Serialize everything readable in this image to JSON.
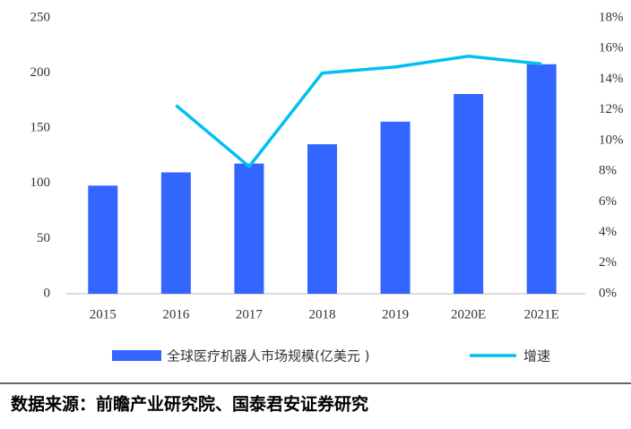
{
  "chart_data": {
    "type": "bar_line",
    "categories": [
      "2015",
      "2016",
      "2017",
      "2018",
      "2019",
      "2020E",
      "2021E"
    ],
    "series": [
      {
        "name": "全球医疗机器人市场规模(亿美元 )",
        "type": "bar",
        "color": "#3366ff",
        "values": [
          98,
          110,
          118,
          135.5,
          156,
          181,
          208
        ]
      },
      {
        "name": "增速",
        "type": "line",
        "axis": "y2",
        "color": "#00c0f0",
        "values": [
          null,
          12.3,
          8.3,
          14.4,
          14.8,
          15.5,
          15.0
        ]
      }
    ],
    "ylim": [
      0,
      250
    ],
    "yticks": [
      0,
      50,
      100,
      150,
      200,
      250
    ],
    "y2lim": [
      0,
      18
    ],
    "y2ticks": [
      {
        "value": 0,
        "label": "0%"
      },
      {
        "value": 2,
        "label": "2%"
      },
      {
        "value": 4,
        "label": "4%"
      },
      {
        "value": 6,
        "label": "6%"
      },
      {
        "value": 8,
        "label": "8%"
      },
      {
        "value": 10,
        "label": "10%"
      },
      {
        "value": 12,
        "label": "12%"
      },
      {
        "value": 14,
        "label": "14%"
      },
      {
        "value": 16,
        "label": "16%"
      },
      {
        "value": 18,
        "label": "18%"
      }
    ]
  },
  "source": "数据来源：前瞻产业研究院、国泰君安证券研究"
}
